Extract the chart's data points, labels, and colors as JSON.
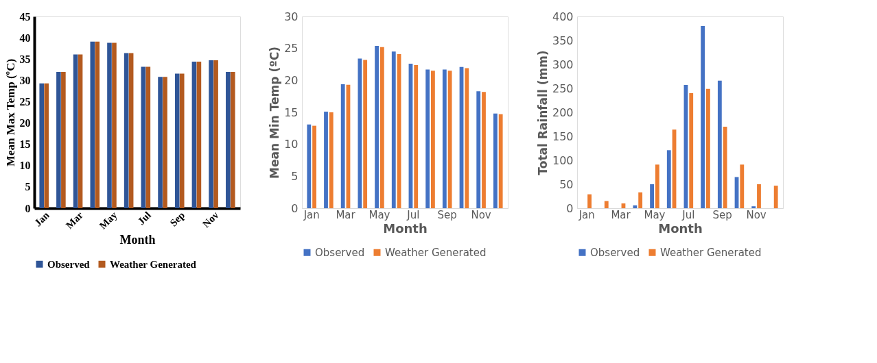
{
  "chart_data": [
    {
      "type": "bar",
      "xlabel": "Month",
      "ylabel": "Mean Max Temp (ºC)",
      "categories": [
        "Jan",
        null,
        "Mar",
        null,
        "May",
        null,
        "Jul",
        null,
        "Sep",
        null,
        "Nov",
        null
      ],
      "ylim": [
        0,
        45
      ],
      "yticks": [
        0,
        5,
        10,
        15,
        20,
        25,
        30,
        35,
        40,
        45
      ],
      "grid": false,
      "legend": "bottom",
      "series": [
        {
          "name": "Observed",
          "color": "#2f5597",
          "values": [
            29.3,
            32.0,
            36.1,
            39.1,
            38.8,
            36.4,
            33.2,
            30.8,
            31.6,
            34.4,
            34.7,
            32.0
          ]
        },
        {
          "name": "Weather Generated",
          "color": "#b35a1f",
          "values": [
            29.3,
            32.0,
            36.1,
            39.1,
            38.8,
            36.4,
            33.2,
            30.8,
            31.6,
            34.4,
            34.7,
            32.0
          ]
        }
      ]
    },
    {
      "type": "bar",
      "xlabel": "Month",
      "ylabel": "Mean Min Temp (ºC)",
      "categories": [
        "Jan",
        null,
        "Mar",
        null,
        "May",
        null,
        "Jul",
        null,
        "Sep",
        null,
        "Nov",
        null
      ],
      "ylim": [
        0,
        30
      ],
      "yticks": [
        0,
        5,
        10,
        15,
        20,
        25,
        30
      ],
      "grid": false,
      "legend": "bottom",
      "series": [
        {
          "name": "Observed",
          "color": "#4472c4",
          "values": [
            13.1,
            15.1,
            19.4,
            23.4,
            25.4,
            24.5,
            22.6,
            21.7,
            21.7,
            22.1,
            18.3,
            14.8
          ]
        },
        {
          "name": "Weather Generated",
          "color": "#ed7d31",
          "values": [
            12.9,
            15.0,
            19.3,
            23.2,
            25.2,
            24.1,
            22.4,
            21.5,
            21.5,
            21.9,
            18.2,
            14.7
          ]
        }
      ]
    },
    {
      "type": "bar",
      "xlabel": "Month",
      "ylabel": "Total Rainfall (mm)",
      "categories": [
        "Jan",
        null,
        "Mar",
        null,
        "May",
        null,
        "Jul",
        null,
        "Sep",
        null,
        "Nov",
        null
      ],
      "ylim": [
        0,
        400
      ],
      "yticks": [
        0,
        50,
        100,
        150,
        200,
        250,
        300,
        350,
        400
      ],
      "grid": false,
      "legend": "bottom",
      "series": [
        {
          "name": "Observed",
          "color": "#4472c4",
          "values": [
            0,
            0,
            0,
            6,
            50,
            121,
            257,
            380,
            266,
            65,
            4,
            0
          ]
        },
        {
          "name": "Weather Generated",
          "color": "#ed7d31",
          "values": [
            29,
            15,
            10,
            33,
            91,
            164,
            240,
            249,
            170,
            91,
            50,
            47
          ]
        }
      ]
    }
  ]
}
